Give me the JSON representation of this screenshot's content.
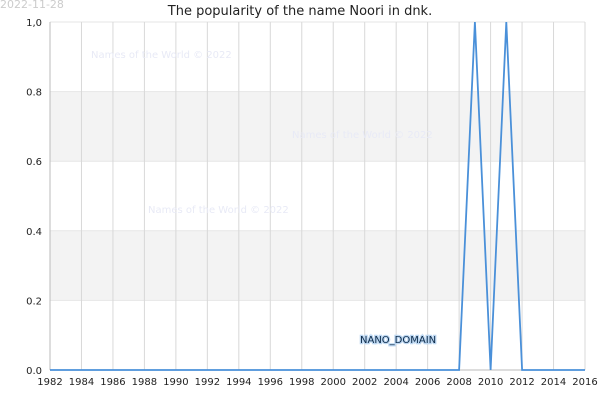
{
  "date_stamp": "2022-11-28",
  "watermark": "Names of the World © 2022",
  "label": "NANO_DOMAIN",
  "chart_data": {
    "type": "line",
    "title": "The popularity of the name Noori in dnk.",
    "xlabel": "",
    "ylabel": "",
    "xlim": [
      1982,
      2016
    ],
    "ylim": [
      0,
      1
    ],
    "x_ticks": [
      "1982",
      "1984",
      "1986",
      "1988",
      "1990",
      "1992",
      "1994",
      "1996",
      "1998",
      "2000",
      "2002",
      "2004",
      "2006",
      "2008",
      "2010",
      "2012",
      "2014",
      "2016"
    ],
    "y_ticks": [
      "0.0",
      "0.2",
      "0.4",
      "0.6",
      "0.8",
      "1,0"
    ],
    "grid": true,
    "legend": "none",
    "line_color": "#4a90d9",
    "series": [
      {
        "x": [
          1982,
          2008,
          2009,
          2010,
          2011,
          2012,
          2016
        ],
        "values": [
          0,
          0,
          1,
          0,
          1,
          0,
          0
        ]
      }
    ]
  }
}
